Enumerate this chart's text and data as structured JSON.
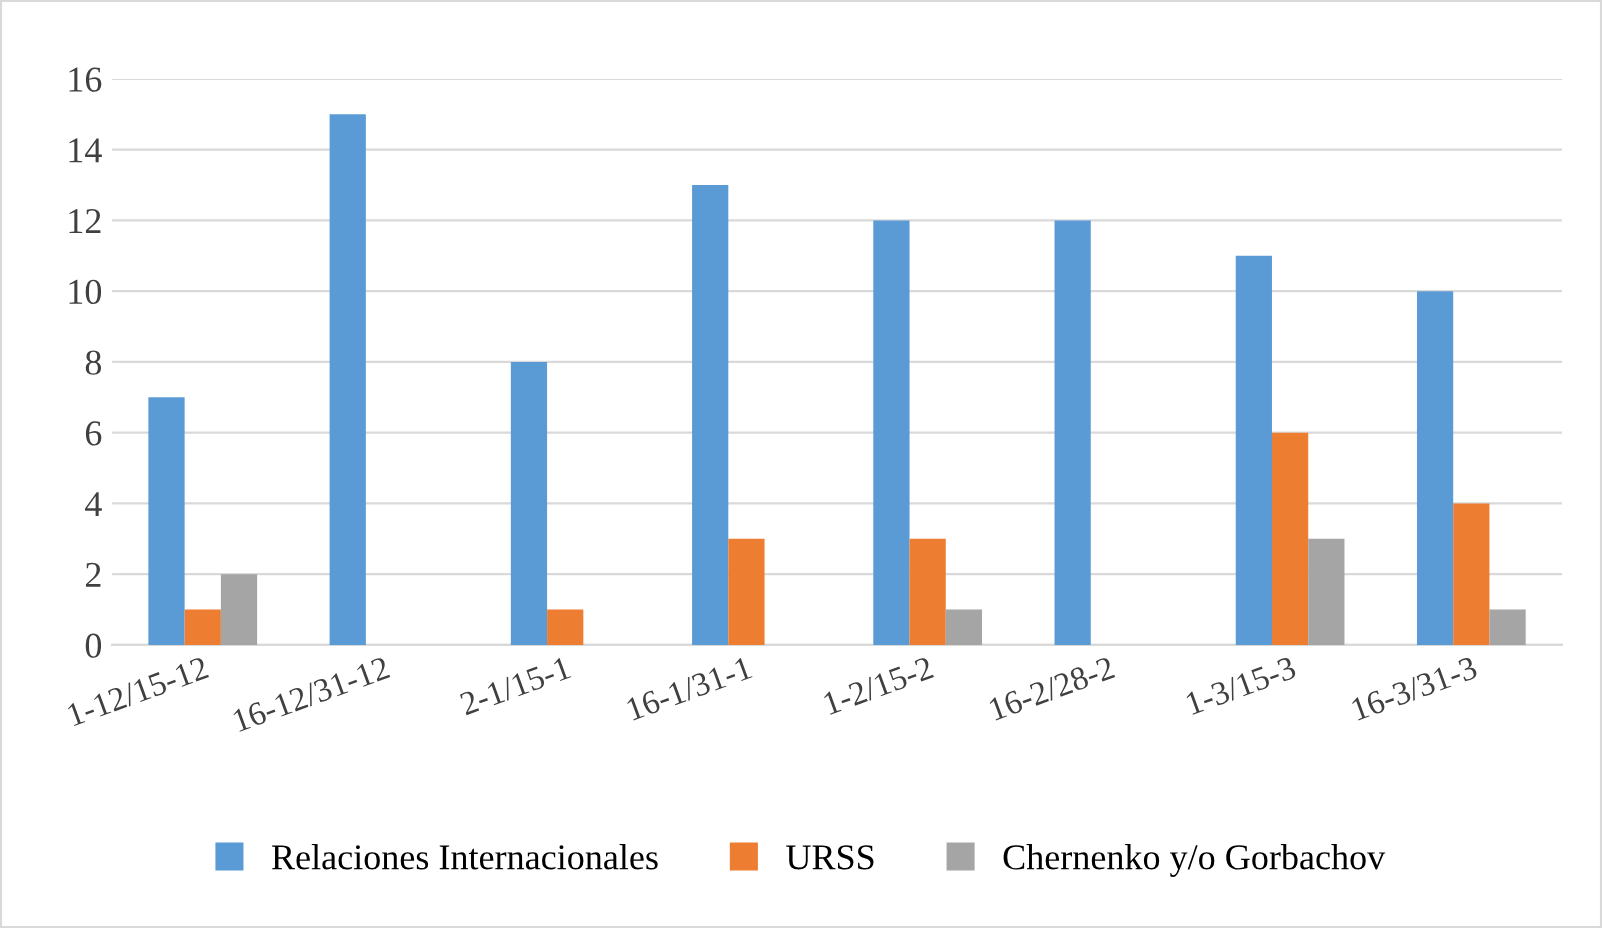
{
  "chart_data": {
    "type": "bar",
    "categories": [
      "1-12/15-12",
      "16-12/31-12",
      "2-1/15-1",
      "16-1/31-1",
      "1-2/15-2",
      "16-2/28-2",
      "1-3/15-3",
      "16-3/31-3"
    ],
    "series": [
      {
        "name": "Relaciones Internacionales",
        "color": "#5b9bd5",
        "values": [
          7,
          15,
          8,
          13,
          12,
          12,
          11,
          10
        ]
      },
      {
        "name": "URSS",
        "color": "#ed7d31",
        "values": [
          1,
          0,
          1,
          3,
          3,
          0,
          6,
          4
        ]
      },
      {
        "name": "Chernenko y/o Gorbachov",
        "color": "#a5a5a5",
        "values": [
          2,
          0,
          0,
          0,
          1,
          0,
          3,
          1
        ]
      }
    ],
    "ylim": [
      0,
      16
    ],
    "yticks": [
      0,
      2,
      4,
      6,
      8,
      10,
      12,
      14,
      16
    ],
    "grid": "y",
    "legend": "bottom"
  }
}
